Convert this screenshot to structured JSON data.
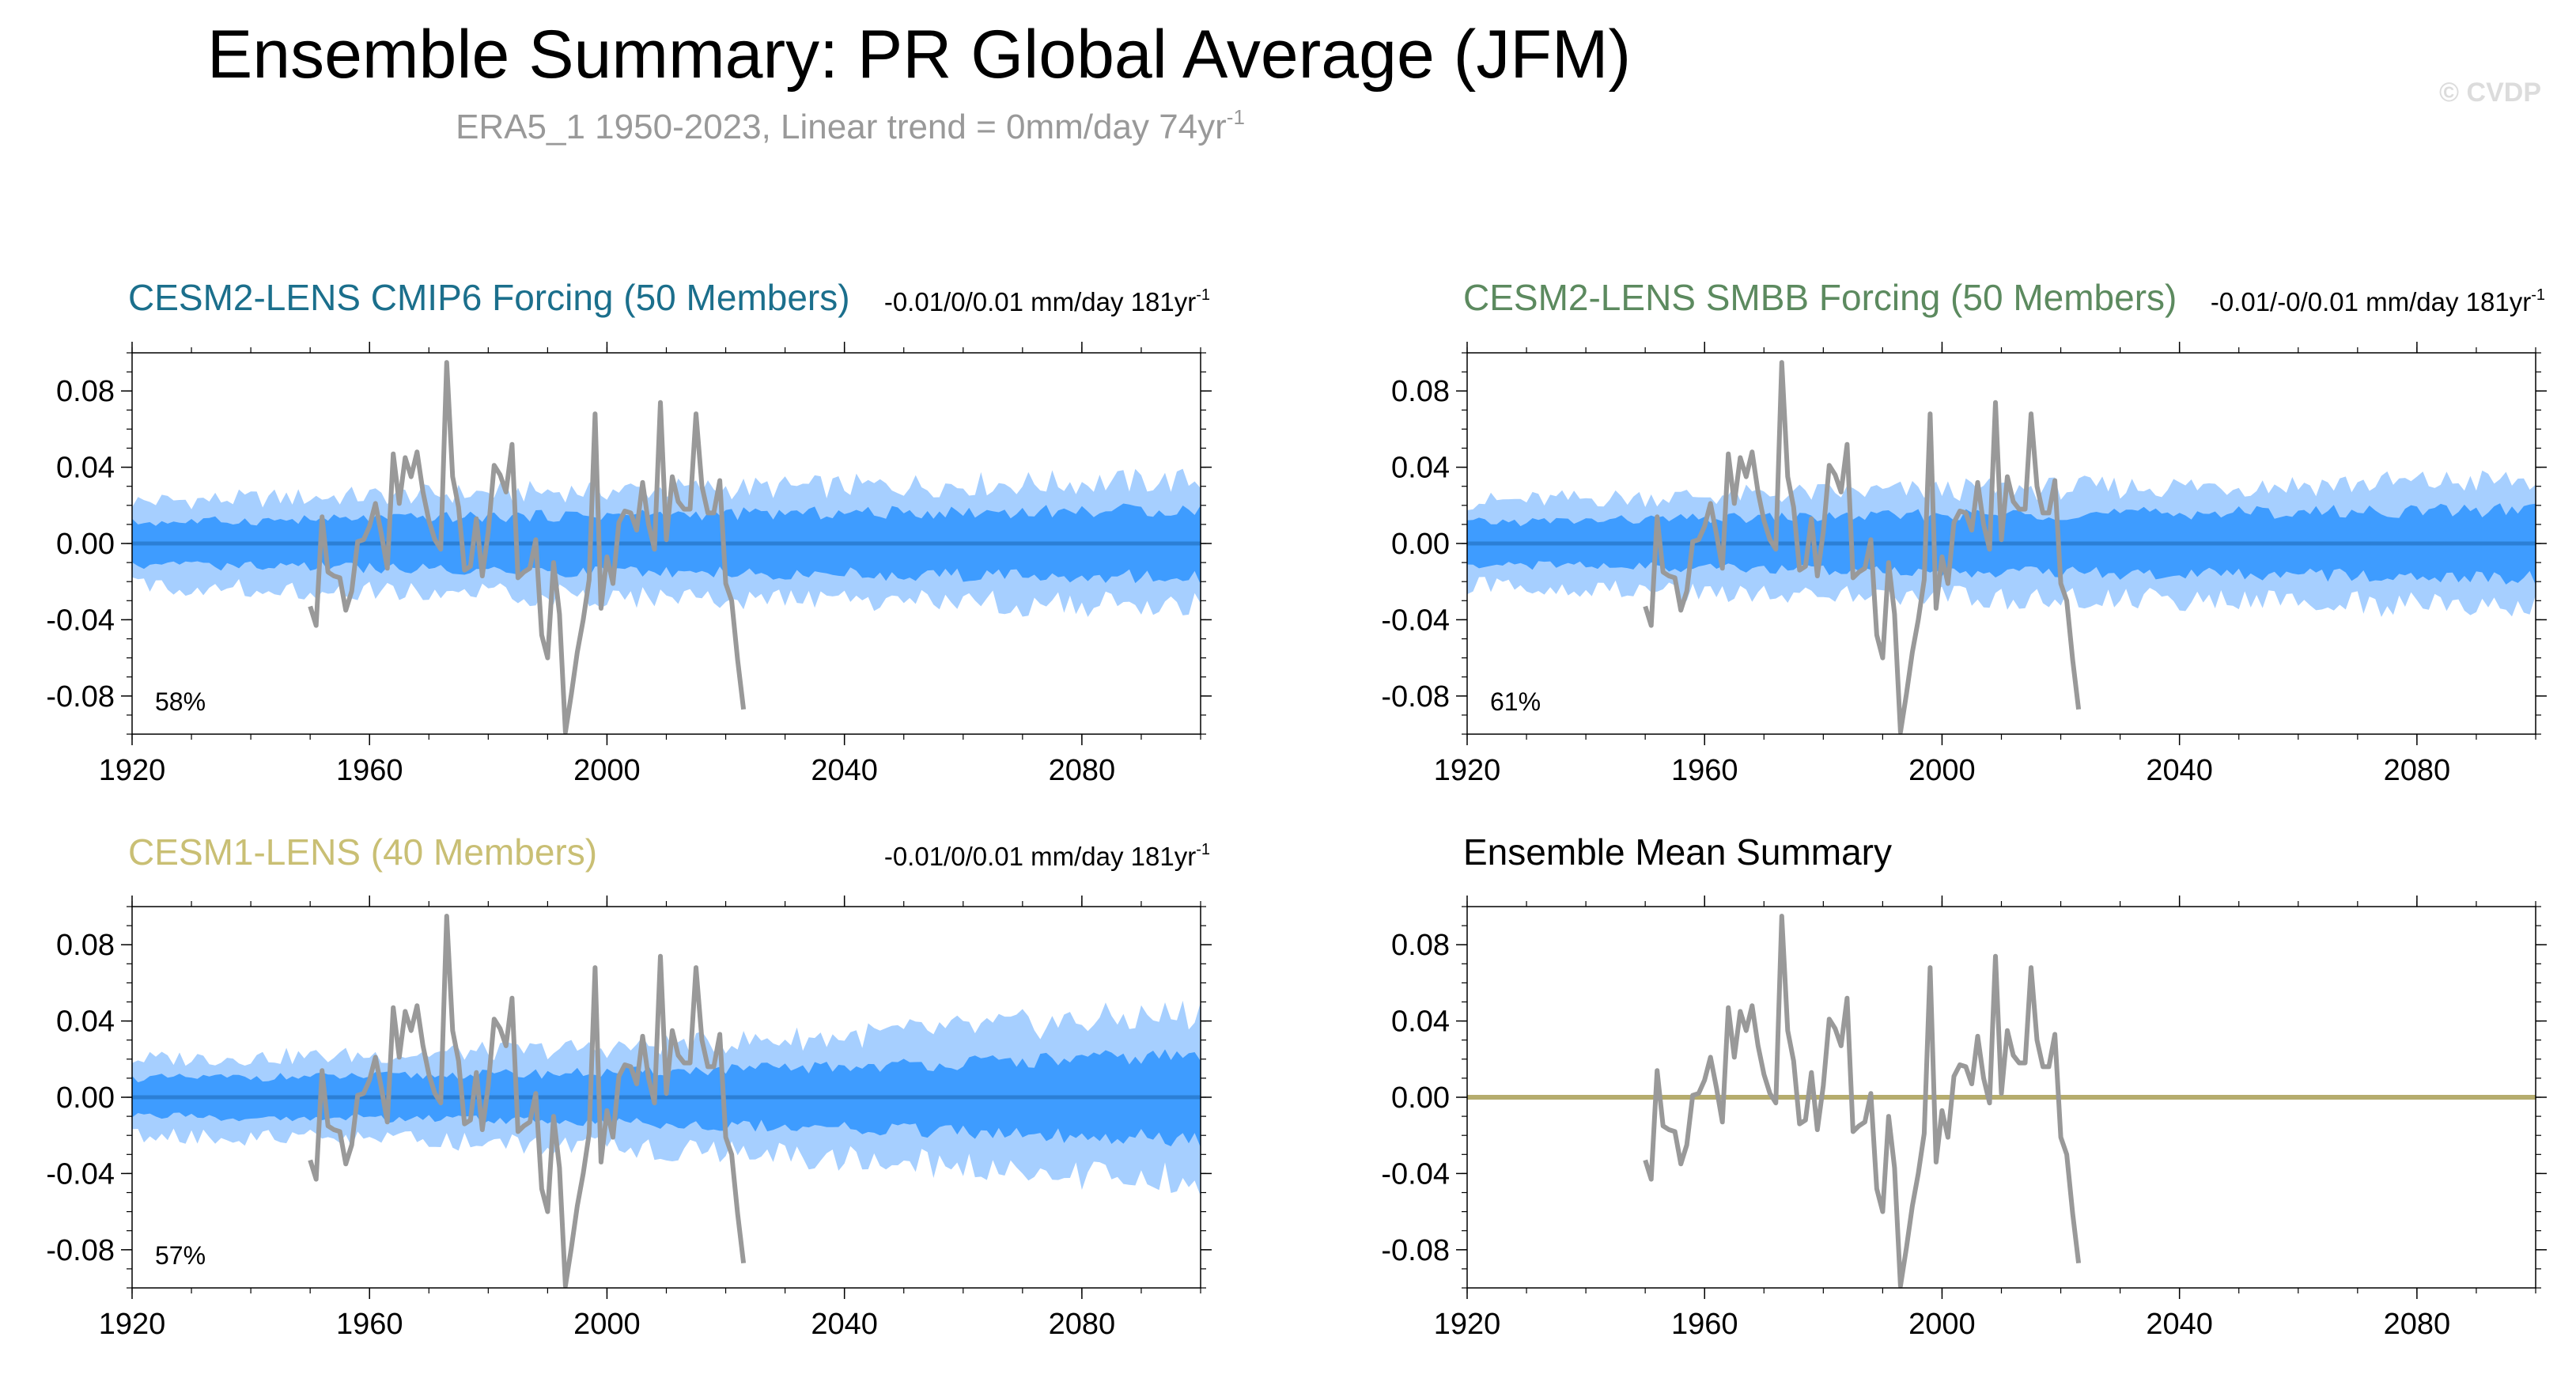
{
  "title": "Ensemble Summary: PR Global Average (JFM)",
  "subtitle": "ERA5_1 1950-2023, Linear trend = 0mm/day 74yr",
  "subtitle_sup": "-1",
  "watermark": "© CVDP",
  "colors": {
    "outer_band": "#a6cfff",
    "inner_band": "#3e9cff",
    "ensemble_mean_line": "#2b7fd6",
    "observations": "#999999",
    "summary_line": "#b5ac6e"
  },
  "panels": [
    {
      "title": "CESM2-LENS CMIP6 Forcing (50 Members)",
      "title_color": "#1b6f8c",
      "trend": "-0.01/0/0.01 mm/day 181yr",
      "trend_sup": "-1",
      "percent": "58%"
    },
    {
      "title": "CESM2-LENS SMBB Forcing (50 Members)",
      "title_color": "#5c8a5f",
      "trend": "-0.01/-0/0.01 mm/day 181yr",
      "trend_sup": "-1",
      "percent": "61%"
    },
    {
      "title": "CESM1-LENS (40 Members)",
      "title_color": "#c9bf74",
      "trend": "-0.01/0/0.01 mm/day 181yr",
      "trend_sup": "-1",
      "percent": "57%"
    },
    {
      "title": "Ensemble Mean Summary",
      "title_color": "#000000"
    }
  ],
  "chart_data": [
    {
      "type": "area",
      "title": "CESM2-LENS CMIP6 Forcing (50 Members)",
      "xlim": [
        1920,
        2100
      ],
      "ylim": [
        -0.1,
        0.1
      ],
      "xticks": [
        1920,
        1960,
        2000,
        2040,
        2080
      ],
      "yticks": [
        0.08,
        0.04,
        0.0,
        -0.04,
        -0.08
      ],
      "ytick_labels": [
        "0.08",
        "0.04",
        "0.00",
        "-0.04",
        "-0.08"
      ],
      "bands": {
        "years": [
          1920,
          1960,
          2000,
          2040,
          2080,
          2100
        ],
        "outer": [
          0.022,
          0.025,
          0.028,
          0.03,
          0.032,
          0.033
        ],
        "inner": [
          0.011,
          0.013,
          0.015,
          0.016,
          0.017,
          0.018
        ]
      },
      "ensemble_mean": 0.0,
      "observations": {
        "name": "ERA5_1",
        "x_start": 1950,
        "values": [
          -0.033,
          -0.043,
          0.014,
          -0.015,
          -0.017,
          -0.018,
          -0.035,
          -0.025,
          0.001,
          0.002,
          0.009,
          0.021,
          0.005,
          -0.013,
          0.047,
          0.021,
          0.045,
          0.035,
          0.048,
          0.027,
          0.012,
          0.002,
          -0.003,
          0.095,
          0.035,
          0.019,
          -0.014,
          -0.012,
          0.013,
          -0.017,
          0.006,
          0.041,
          0.036,
          0.027,
          0.052,
          -0.018,
          -0.015,
          -0.013,
          0.002,
          -0.048,
          -0.06,
          -0.01,
          -0.037,
          -0.099,
          -0.079,
          -0.057,
          -0.04,
          -0.019,
          0.068,
          -0.034,
          -0.007,
          -0.021,
          0.011,
          0.017,
          0.016,
          0.007,
          0.032,
          0.01,
          -0.003,
          0.074,
          0.002,
          0.035,
          0.022,
          0.018,
          0.018,
          0.068,
          0.03,
          0.016,
          0.016,
          0.033,
          -0.021,
          -0.03,
          -0.061,
          -0.087
        ]
      }
    },
    {
      "type": "area",
      "title": "CESM2-LENS SMBB Forcing (50 Members)",
      "xlim": [
        1920,
        2100
      ],
      "ylim": [
        -0.1,
        0.1
      ],
      "xticks": [
        1920,
        1960,
        2000,
        2040,
        2080
      ],
      "yticks": [
        0.08,
        0.04,
        0.0,
        -0.04,
        -0.08
      ],
      "ytick_labels": [
        "0.08",
        "0.04",
        "0.00",
        "-0.04",
        "-0.08"
      ],
      "bands": {
        "years": [
          1920,
          1960,
          2000,
          2040,
          2080,
          2100
        ],
        "outer": [
          0.022,
          0.025,
          0.028,
          0.03,
          0.032,
          0.033
        ],
        "inner": [
          0.011,
          0.013,
          0.015,
          0.016,
          0.017,
          0.018
        ]
      },
      "ensemble_mean": 0.0,
      "observations": {
        "name": "ERA5_1",
        "x_start": 1950,
        "values": [
          -0.033,
          -0.043,
          0.014,
          -0.015,
          -0.017,
          -0.018,
          -0.035,
          -0.025,
          0.001,
          0.002,
          0.009,
          0.021,
          0.005,
          -0.013,
          0.047,
          0.021,
          0.045,
          0.035,
          0.048,
          0.027,
          0.012,
          0.002,
          -0.003,
          0.095,
          0.035,
          0.019,
          -0.014,
          -0.012,
          0.013,
          -0.017,
          0.006,
          0.041,
          0.036,
          0.027,
          0.052,
          -0.018,
          -0.015,
          -0.013,
          0.002,
          -0.048,
          -0.06,
          -0.01,
          -0.037,
          -0.099,
          -0.079,
          -0.057,
          -0.04,
          -0.019,
          0.068,
          -0.034,
          -0.007,
          -0.021,
          0.011,
          0.017,
          0.016,
          0.007,
          0.032,
          0.01,
          -0.003,
          0.074,
          0.002,
          0.035,
          0.022,
          0.018,
          0.018,
          0.068,
          0.03,
          0.016,
          0.016,
          0.033,
          -0.021,
          -0.03,
          -0.061,
          -0.087
        ]
      }
    },
    {
      "type": "area",
      "title": "CESM1-LENS (40 Members)",
      "xlim": [
        1920,
        2100
      ],
      "ylim": [
        -0.1,
        0.1
      ],
      "xticks": [
        1920,
        1960,
        2000,
        2040,
        2080
      ],
      "yticks": [
        0.08,
        0.04,
        0.0,
        -0.04,
        -0.08
      ],
      "ytick_labels": [
        "0.08",
        "0.04",
        "0.00",
        "-0.04",
        "-0.08"
      ],
      "bands": {
        "years": [
          1920,
          1960,
          2000,
          2040,
          2080,
          2100
        ],
        "outer": [
          0.02,
          0.022,
          0.026,
          0.032,
          0.04,
          0.044
        ],
        "inner": [
          0.01,
          0.011,
          0.013,
          0.016,
          0.02,
          0.022
        ]
      },
      "ensemble_mean": 0.0,
      "observations": {
        "name": "ERA5_1",
        "x_start": 1950,
        "values": [
          -0.033,
          -0.043,
          0.014,
          -0.015,
          -0.017,
          -0.018,
          -0.035,
          -0.025,
          0.001,
          0.002,
          0.009,
          0.021,
          0.005,
          -0.013,
          0.047,
          0.021,
          0.045,
          0.035,
          0.048,
          0.027,
          0.012,
          0.002,
          -0.003,
          0.095,
          0.035,
          0.019,
          -0.014,
          -0.012,
          0.013,
          -0.017,
          0.006,
          0.041,
          0.036,
          0.027,
          0.052,
          -0.018,
          -0.015,
          -0.013,
          0.002,
          -0.048,
          -0.06,
          -0.01,
          -0.037,
          -0.099,
          -0.079,
          -0.057,
          -0.04,
          -0.019,
          0.068,
          -0.034,
          -0.007,
          -0.021,
          0.011,
          0.017,
          0.016,
          0.007,
          0.032,
          0.01,
          -0.003,
          0.074,
          0.002,
          0.035,
          0.022,
          0.018,
          0.018,
          0.068,
          0.03,
          0.016,
          0.016,
          0.033,
          -0.021,
          -0.03,
          -0.061,
          -0.087
        ]
      }
    },
    {
      "type": "line",
      "title": "Ensemble Mean Summary",
      "xlim": [
        1920,
        2100
      ],
      "ylim": [
        -0.1,
        0.1
      ],
      "xticks": [
        1920,
        1960,
        2000,
        2040,
        2080
      ],
      "yticks": [
        0.08,
        0.04,
        0.0,
        -0.04,
        -0.08
      ],
      "ytick_labels": [
        "0.08",
        "0.04",
        "0.00",
        "-0.04",
        "-0.08"
      ],
      "ensemble_mean": 0.0,
      "observations": {
        "name": "ERA5_1",
        "x_start": 1950,
        "values": [
          -0.033,
          -0.043,
          0.014,
          -0.015,
          -0.017,
          -0.018,
          -0.035,
          -0.025,
          0.001,
          0.002,
          0.009,
          0.021,
          0.005,
          -0.013,
          0.047,
          0.021,
          0.045,
          0.035,
          0.048,
          0.027,
          0.012,
          0.002,
          -0.003,
          0.095,
          0.035,
          0.019,
          -0.014,
          -0.012,
          0.013,
          -0.017,
          0.006,
          0.041,
          0.036,
          0.027,
          0.052,
          -0.018,
          -0.015,
          -0.013,
          0.002,
          -0.048,
          -0.06,
          -0.01,
          -0.037,
          -0.099,
          -0.079,
          -0.057,
          -0.04,
          -0.019,
          0.068,
          -0.034,
          -0.007,
          -0.021,
          0.011,
          0.017,
          0.016,
          0.007,
          0.032,
          0.01,
          -0.003,
          0.074,
          0.002,
          0.035,
          0.022,
          0.018,
          0.018,
          0.068,
          0.03,
          0.016,
          0.016,
          0.033,
          -0.021,
          -0.03,
          -0.061,
          -0.087
        ]
      }
    }
  ]
}
